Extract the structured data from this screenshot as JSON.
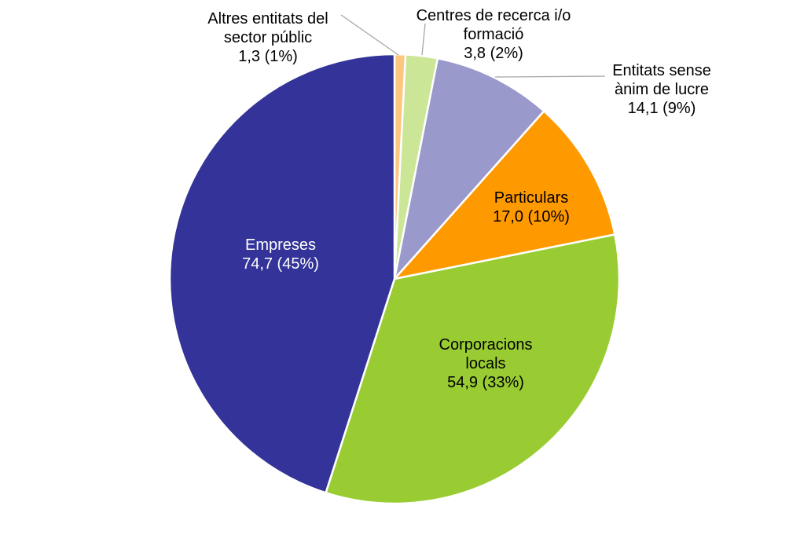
{
  "chart_data": {
    "type": "pie",
    "title": "",
    "slices": [
      {
        "name": "Altres entitats del sector públic",
        "label_lines": [
          "Altres entitats del",
          "sector públic"
        ],
        "value": 1.3,
        "value_text": "1,3 (1%)",
        "color": "#FFC680"
      },
      {
        "name": "Centres de recerca i/o formació",
        "label_lines": [
          "Centres de recerca i/o",
          "formació"
        ],
        "value": 3.8,
        "value_text": "3,8 (2%)",
        "color": "#CCE698"
      },
      {
        "name": "Entitats sense ànim de lucre",
        "label_lines": [
          "Entitats sense",
          "ànim de lucre"
        ],
        "value": 14.1,
        "value_text": "14,1 (9%)",
        "color": "#9999CC"
      },
      {
        "name": "Particulars",
        "label_lines": [
          "Particulars"
        ],
        "value": 17.0,
        "value_text": "17,0 (10%)",
        "color": "#FF9900"
      },
      {
        "name": "Corporacions locals",
        "label_lines": [
          "Corporacions",
          "locals"
        ],
        "value": 54.9,
        "value_text": "54,9 (33%)",
        "color": "#99CC33"
      },
      {
        "name": "Empreses",
        "label_lines": [
          "Empreses"
        ],
        "value": 74.7,
        "value_text": "74,7 (45%)",
        "color": "#333399"
      }
    ],
    "start": "12 o'clock",
    "direction": "clockwise",
    "legend": "none"
  }
}
